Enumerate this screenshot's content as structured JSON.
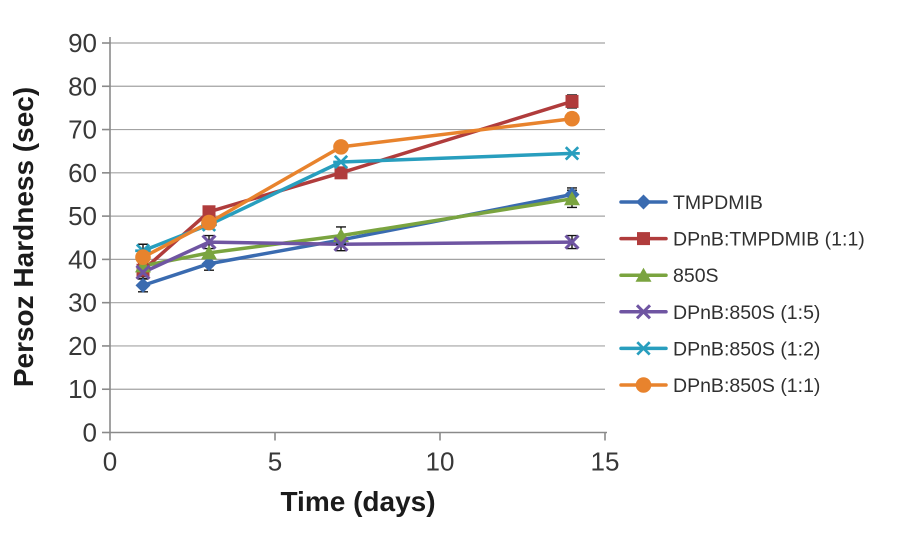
{
  "chart_data": {
    "type": "line",
    "title": "",
    "xlabel": "Time (days)",
    "ylabel": "Persoz Hardness (sec)",
    "xlim": [
      0,
      15
    ],
    "ylim": [
      0,
      90
    ],
    "xticks": [
      0,
      5,
      10,
      15
    ],
    "yticks": [
      0,
      10,
      20,
      30,
      40,
      50,
      60,
      70,
      80,
      90
    ],
    "grid": "horizontal-only",
    "legend_position": "right",
    "x": [
      1,
      3,
      7,
      14
    ],
    "series": [
      {
        "name": "TMPDMIB",
        "marker": "diamond",
        "color": "#3A6BB0",
        "values": [
          34,
          39,
          44.5,
          55
        ],
        "errors": [
          1.5,
          1.5,
          0,
          1.5
        ]
      },
      {
        "name": "DPnB:TMPDMIB (1:1)",
        "marker": "square",
        "color": "#B03C3C",
        "values": [
          37.5,
          51,
          60,
          76.5
        ],
        "errors": [
          1.5,
          0,
          0,
          1.5
        ]
      },
      {
        "name": "850S",
        "marker": "triangle",
        "color": "#7AA43F",
        "values": [
          38.5,
          41.5,
          45.5,
          54
        ],
        "errors": [
          0,
          0,
          2,
          2
        ]
      },
      {
        "name": "DPnB:850S (1:5)",
        "marker": "x",
        "color": "#6F55A2",
        "values": [
          37,
          44,
          43.5,
          44
        ],
        "errors": [
          1.5,
          1.5,
          1.5,
          1.5
        ]
      },
      {
        "name": "DPnB:850S (1:2)",
        "marker": "star",
        "color": "#289EBE",
        "values": [
          42,
          48,
          62.5,
          64.5
        ],
        "errors": [
          1.5,
          0,
          0,
          0
        ]
      },
      {
        "name": "DPnB:850S (1:1)",
        "marker": "circle",
        "color": "#E8832D",
        "values": [
          40.5,
          48.5,
          66,
          72.5
        ],
        "errors": [
          0,
          0,
          0,
          0
        ]
      }
    ],
    "colors": {
      "background": "#ffffff",
      "gridline": "#A3A3A3",
      "axis": "#8A8A8A",
      "tick_label": "#383838",
      "axis_title": "#1B1B1B",
      "legend_text": "#303030",
      "error_bar": "#141414"
    }
  }
}
